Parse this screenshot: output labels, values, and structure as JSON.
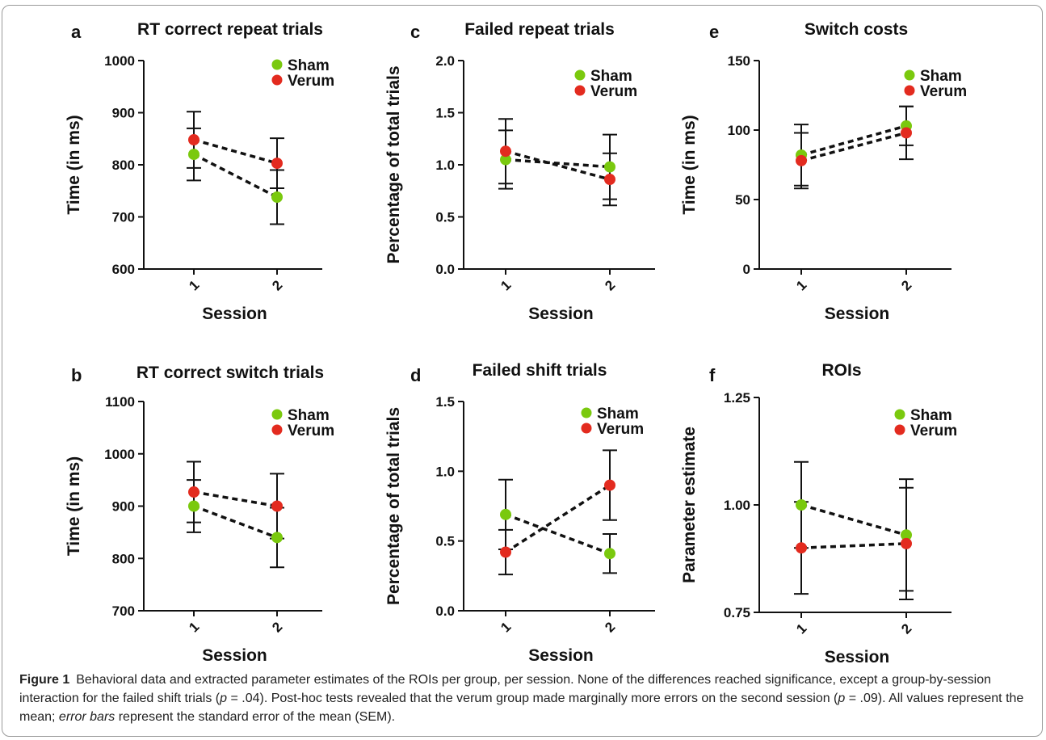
{
  "colors": {
    "sham": "#7ac90e",
    "verum": "#e32b1f",
    "ink": "#111111"
  },
  "chart_data": [
    {
      "letter": "a",
      "type": "line",
      "title": "RT correct repeat trials",
      "xlabel": "Session",
      "ylabel": "Time (in ms)",
      "categories": [
        "1",
        "2"
      ],
      "ylim": [
        600,
        1000
      ],
      "yticks": [
        "600",
        "700",
        "800",
        "900",
        "1000"
      ],
      "legend": "top-right",
      "series": [
        {
          "name": "Sham",
          "values": [
            820,
            738
          ],
          "err": [
            50,
            52
          ]
        },
        {
          "name": "Verum",
          "values": [
            848,
            803
          ],
          "err": [
            54,
            48
          ]
        }
      ]
    },
    {
      "letter": "b",
      "type": "line",
      "title": "RT correct switch trials",
      "xlabel": "Session",
      "ylabel": "Time (in ms)",
      "categories": [
        "1",
        "2"
      ],
      "ylim": [
        700,
        1100
      ],
      "yticks": [
        "700",
        "800",
        "900",
        "1000",
        "1100"
      ],
      "legend": "top-right",
      "series": [
        {
          "name": "Sham",
          "values": [
            900,
            840
          ],
          "err": [
            50,
            57
          ]
        },
        {
          "name": "Verum",
          "values": [
            927,
            900
          ],
          "err": [
            58,
            62
          ]
        }
      ]
    },
    {
      "letter": "c",
      "type": "line",
      "title": "Failed repeat trials",
      "xlabel": "Session",
      "ylabel": "Percentage of total trials",
      "categories": [
        "1",
        "2"
      ],
      "ylim": [
        0,
        2
      ],
      "yticks": [
        "0.0",
        "0.5",
        "1.0",
        "1.5",
        "2.0"
      ],
      "legend": "top-right",
      "series": [
        {
          "name": "Sham",
          "values": [
            1.05,
            0.98
          ],
          "err": [
            0.28,
            0.31
          ]
        },
        {
          "name": "Verum",
          "values": [
            1.13,
            0.86
          ],
          "err": [
            0.31,
            0.25
          ]
        }
      ]
    },
    {
      "letter": "d",
      "type": "line",
      "title": "Failed shift trials",
      "xlabel": "Session",
      "ylabel": "Percentage of total trials",
      "categories": [
        "1",
        "2"
      ],
      "ylim": [
        0,
        1.5
      ],
      "yticks": [
        "0.0",
        "0.5",
        "1.0",
        "1.5"
      ],
      "legend": "top-right",
      "series": [
        {
          "name": "Sham",
          "values": [
            0.69,
            0.41
          ],
          "err": [
            0.25,
            0.14
          ]
        },
        {
          "name": "Verum",
          "values": [
            0.42,
            0.9
          ],
          "err": [
            0.16,
            0.25
          ]
        }
      ]
    },
    {
      "letter": "e",
      "type": "line",
      "title": "Switch costs",
      "xlabel": "Session",
      "ylabel": "Time (in ms)",
      "categories": [
        "1",
        "2"
      ],
      "ylim": [
        0,
        150
      ],
      "yticks": [
        "0",
        "50",
        "100",
        "150"
      ],
      "legend": "top-right",
      "series": [
        {
          "name": "Sham",
          "values": [
            82,
            103
          ],
          "err": [
            22,
            14
          ]
        },
        {
          "name": "Verum",
          "values": [
            78,
            98
          ],
          "err": [
            20,
            19
          ]
        }
      ]
    },
    {
      "letter": "f",
      "type": "line",
      "title": "ROIs",
      "xlabel": "Session",
      "ylabel": "Parameter estimate",
      "categories": [
        "1",
        "2"
      ],
      "ylim": [
        0.75,
        1.25
      ],
      "yticks": [
        "0.75",
        "1.00",
        "1.25"
      ],
      "legend": "top-right",
      "series": [
        {
          "name": "Sham",
          "values": [
            1.0,
            0.93
          ],
          "err": [
            0.1,
            0.13
          ]
        },
        {
          "name": "Verum",
          "values": [
            0.9,
            0.91
          ],
          "err": [
            0.107,
            0.13
          ]
        }
      ]
    }
  ],
  "caption": {
    "label": "Figure 1",
    "p1": "Behavioral data and extracted parameter estimates of the ROIs per group, per session. None of the differences reached significance, except a group-by-session interaction for the failed shift trials (",
    "pvar1": "p",
    "p2": " = .04). Post-hoc tests revealed that the verum group made marginally more errors on the second session (",
    "pvar2": "p",
    "p3": " = .09). All values represent the mean; ",
    "italic": "error bars",
    "p4": " represent the standard error of the mean (SEM)."
  }
}
